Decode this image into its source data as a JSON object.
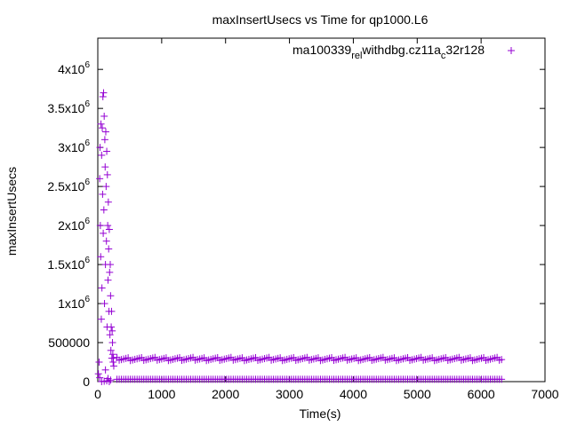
{
  "chart_data": {
    "type": "scatter",
    "title": "maxInsertUsecs vs Time for qp1000.L6",
    "xlabel": "Time(s)",
    "ylabel": "maxInsertUsecs",
    "xlim": [
      0,
      7000
    ],
    "ylim": [
      0,
      4400000
    ],
    "grid": false,
    "legend_position": "top-right",
    "marker": "+",
    "x_ticks": [
      {
        "value": 0,
        "label": "0"
      },
      {
        "value": 1000,
        "label": "1000"
      },
      {
        "value": 2000,
        "label": "2000"
      },
      {
        "value": 3000,
        "label": "3000"
      },
      {
        "value": 4000,
        "label": "4000"
      },
      {
        "value": 5000,
        "label": "5000"
      },
      {
        "value": 6000,
        "label": "6000"
      },
      {
        "value": 7000,
        "label": "7000"
      }
    ],
    "y_ticks": [
      {
        "value": 0,
        "mantissa": "0",
        "exp": ""
      },
      {
        "value": 500000,
        "mantissa": "500000",
        "exp": ""
      },
      {
        "value": 1000000,
        "mantissa": "1x10",
        "exp": "6"
      },
      {
        "value": 1500000,
        "mantissa": "1.5x10",
        "exp": "6"
      },
      {
        "value": 2000000,
        "mantissa": "2x10",
        "exp": "6"
      },
      {
        "value": 2500000,
        "mantissa": "2.5x10",
        "exp": "6"
      },
      {
        "value": 3000000,
        "mantissa": "3x10",
        "exp": "6"
      },
      {
        "value": 3500000,
        "mantissa": "3.5x10",
        "exp": "6"
      },
      {
        "value": 4000000,
        "mantissa": "4x10",
        "exp": "6"
      }
    ],
    "series": [
      {
        "legend_parts": [
          "ma100339",
          "rel",
          "w",
          "ithdbg.cz11a",
          "c",
          "32r128"
        ],
        "color": "#9400d3",
        "points": [
          [
            10,
            100000
          ],
          [
            20,
            250000
          ],
          [
            30,
            2600000
          ],
          [
            35,
            3000000
          ],
          [
            40,
            2000000
          ],
          [
            45,
            1600000
          ],
          [
            50,
            3300000
          ],
          [
            55,
            800000
          ],
          [
            60,
            2900000
          ],
          [
            65,
            1200000
          ],
          [
            70,
            3250000
          ],
          [
            75,
            2400000
          ],
          [
            80,
            3650000
          ],
          [
            85,
            1900000
          ],
          [
            90,
            3700000
          ],
          [
            95,
            2200000
          ],
          [
            100,
            3400000
          ],
          [
            105,
            1000000
          ],
          [
            110,
            3100000
          ],
          [
            115,
            2750000
          ],
          [
            120,
            1500000
          ],
          [
            125,
            3200000
          ],
          [
            130,
            2500000
          ],
          [
            135,
            1800000
          ],
          [
            140,
            2950000
          ],
          [
            145,
            700000
          ],
          [
            150,
            2650000
          ],
          [
            155,
            2000000
          ],
          [
            160,
            1300000
          ],
          [
            165,
            2300000
          ],
          [
            170,
            1700000
          ],
          [
            175,
            900000
          ],
          [
            180,
            1950000
          ],
          [
            185,
            1400000
          ],
          [
            190,
            600000
          ],
          [
            195,
            1500000
          ],
          [
            200,
            1100000
          ],
          [
            205,
            400000
          ],
          [
            210,
            700000
          ],
          [
            215,
            900000
          ],
          [
            220,
            300000
          ],
          [
            225,
            650000
          ],
          [
            230,
            500000
          ],
          [
            235,
            350000
          ],
          [
            240,
            250000
          ],
          [
            245,
            300000
          ],
          [
            250,
            200000
          ],
          [
            60,
            0
          ],
          [
            100,
            5000
          ],
          [
            140,
            10000
          ],
          [
            180,
            0
          ],
          [
            200,
            20000
          ],
          [
            30,
            50000
          ],
          [
            120,
            150000
          ],
          [
            160,
            40000
          ]
        ]
      }
    ]
  }
}
